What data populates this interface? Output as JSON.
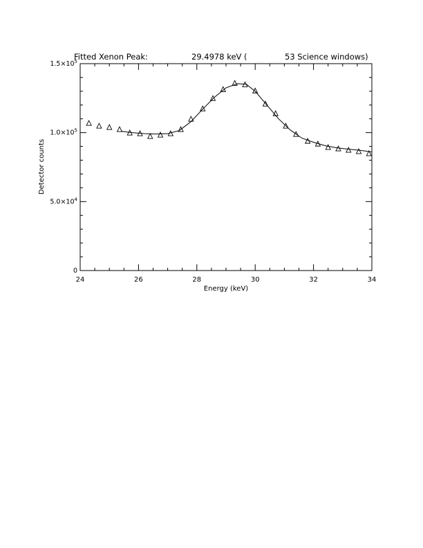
{
  "header": {
    "title": "Fitted Xenon Peak:",
    "energy": "29.4978 keV (",
    "windows": "53 Science windows)"
  },
  "chart_data": {
    "type": "scatter",
    "title": "Fitted Xenon Peak: 29.4978 keV ( 53 Science windows)",
    "xlabel": "Energy (keV)",
    "ylabel": "Detector counts",
    "xlim": [
      24,
      34
    ],
    "ylim": [
      0,
      150000
    ],
    "x_ticks": [
      24,
      26,
      28,
      30,
      32,
      34
    ],
    "x_tick_labels": [
      "24",
      "26",
      "28",
      "30",
      "32",
      "34"
    ],
    "y_ticks": [
      0,
      50000,
      100000,
      150000
    ],
    "y_tick_labels": [
      {
        "mant": "0",
        "exp": ""
      },
      {
        "mant": "5.0×10",
        "exp": "4"
      },
      {
        "mant": "1.0×10",
        "exp": "5"
      },
      {
        "mant": "1.5×10",
        "exp": "5"
      }
    ],
    "grid": false,
    "series": [
      {
        "kind": "points",
        "marker": "triangle",
        "x": [
          24.3,
          24.65,
          25.0,
          25.35,
          25.7,
          26.05,
          26.4,
          26.75,
          27.1,
          27.45,
          27.8,
          28.2,
          28.55,
          28.9,
          29.3,
          29.65,
          30.0,
          30.35,
          30.7,
          31.05,
          31.4,
          31.8,
          32.15,
          32.5,
          32.85,
          33.2,
          33.55,
          33.9
        ],
        "y": [
          107000,
          105000,
          104000,
          102500,
          100000,
          99500,
          97500,
          98500,
          99500,
          102500,
          110000,
          117500,
          125000,
          131500,
          136000,
          135000,
          130500,
          121000,
          114000,
          105000,
          99000,
          94000,
          92000,
          89500,
          88500,
          87500,
          86500,
          85000
        ]
      },
      {
        "kind": "line",
        "x": [
          25.4,
          25.8,
          26.2,
          26.6,
          27.0,
          27.4,
          27.8,
          28.2,
          28.6,
          29.0,
          29.4,
          29.7,
          30.0,
          30.4,
          30.8,
          31.2,
          31.6,
          32.0,
          32.4,
          32.8,
          33.2,
          33.6,
          34.0
        ],
        "y": [
          101000,
          100000,
          99300,
          99000,
          99300,
          101500,
          108000,
          117000,
          125500,
          132500,
          135500,
          135000,
          130000,
          120000,
          110000,
          102000,
          96000,
          93000,
          90500,
          89000,
          88000,
          87200,
          86000
        ]
      }
    ]
  }
}
